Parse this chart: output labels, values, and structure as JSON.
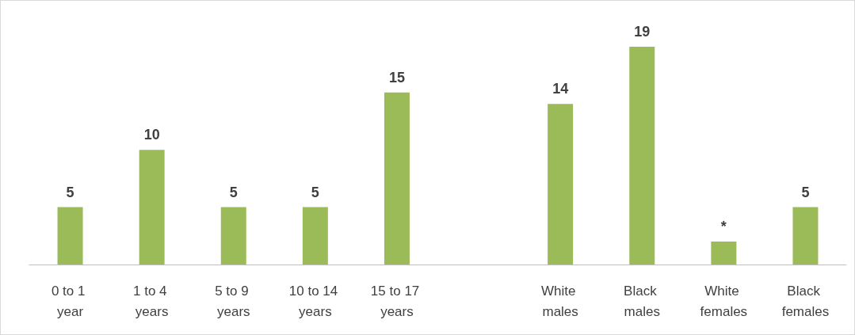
{
  "chart_data": {
    "type": "bar",
    "categories": [
      "0 to 1 year",
      "1 to 4 years",
      "5 to 9 years",
      "10 to 14 years",
      "15 to 17 years",
      null,
      "White males",
      "Black males",
      "White females",
      "Black females"
    ],
    "values": [
      5,
      10,
      5,
      5,
      15,
      null,
      14,
      19,
      2,
      5
    ],
    "value_labels": [
      "5",
      "10",
      "5",
      "5",
      "15",
      null,
      "14",
      "19",
      "*",
      "5"
    ],
    "color": "#9bbb59"
  }
}
